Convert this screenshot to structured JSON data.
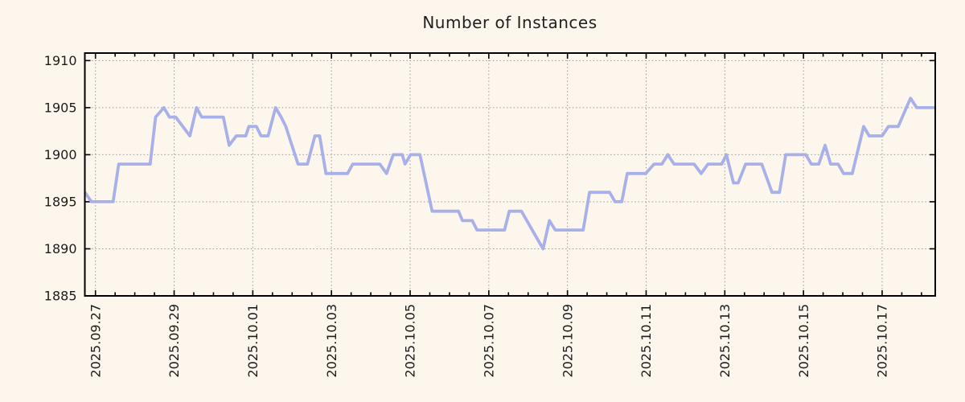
{
  "chart_data": {
    "type": "line",
    "title": "Number of Instances",
    "x_unit": "days since 2025-09-27 00:00",
    "xlim": [
      -0.27,
      21.35
    ],
    "ylim": [
      1885,
      1910.8
    ],
    "grid": "dotted",
    "legend": "none",
    "x_ticks": [
      {
        "t": 0,
        "label": "2025.09.27"
      },
      {
        "t": 2,
        "label": "2025.09.29"
      },
      {
        "t": 4,
        "label": "2025.10.01"
      },
      {
        "t": 6,
        "label": "2025.10.03"
      },
      {
        "t": 8,
        "label": "2025.10.05"
      },
      {
        "t": 10,
        "label": "2025.10.07"
      },
      {
        "t": 12,
        "label": "2025.10.09"
      },
      {
        "t": 14,
        "label": "2025.10.11"
      },
      {
        "t": 16,
        "label": "2025.10.13"
      },
      {
        "t": 18,
        "label": "2025.10.15"
      },
      {
        "t": 20,
        "label": "2025.10.17"
      }
    ],
    "x_minor_step": 0.5,
    "y_ticks": [
      1885,
      1890,
      1895,
      1900,
      1905,
      1910
    ],
    "colors": {
      "line": "#a8b0ea",
      "grid": "#999999",
      "frame": "#000000",
      "text": "#1c1c1c",
      "background": "#fdf6ec"
    },
    "series": [
      {
        "name": "instances",
        "points": [
          [
            -0.27,
            1896
          ],
          [
            -0.1,
            1895
          ],
          [
            0.45,
            1895
          ],
          [
            0.59,
            1899
          ],
          [
            1.39,
            1899
          ],
          [
            1.53,
            1904
          ],
          [
            1.74,
            1905
          ],
          [
            1.88,
            1904
          ],
          [
            2.04,
            1904
          ],
          [
            2.4,
            1902
          ],
          [
            2.57,
            1905
          ],
          [
            2.7,
            1904
          ],
          [
            3.25,
            1904
          ],
          [
            3.4,
            1901
          ],
          [
            3.58,
            1902
          ],
          [
            3.82,
            1902
          ],
          [
            3.9,
            1903
          ],
          [
            4.09,
            1903
          ],
          [
            4.21,
            1902
          ],
          [
            4.39,
            1902
          ],
          [
            4.58,
            1905
          ],
          [
            4.72,
            1904
          ],
          [
            4.84,
            1903
          ],
          [
            5.15,
            1899
          ],
          [
            5.39,
            1899
          ],
          [
            5.58,
            1902
          ],
          [
            5.7,
            1902
          ],
          [
            5.86,
            1898
          ],
          [
            6.41,
            1898
          ],
          [
            6.54,
            1899
          ],
          [
            7.23,
            1899
          ],
          [
            7.4,
            1898
          ],
          [
            7.57,
            1900
          ],
          [
            7.8,
            1900
          ],
          [
            7.87,
            1899
          ],
          [
            8.01,
            1900
          ],
          [
            8.25,
            1900
          ],
          [
            8.56,
            1894
          ],
          [
            9.23,
            1894
          ],
          [
            9.33,
            1893
          ],
          [
            9.58,
            1893
          ],
          [
            9.7,
            1892
          ],
          [
            10.4,
            1892
          ],
          [
            10.52,
            1894
          ],
          [
            10.83,
            1894
          ],
          [
            11.38,
            1890
          ],
          [
            11.54,
            1893
          ],
          [
            11.69,
            1892
          ],
          [
            12.4,
            1892
          ],
          [
            12.56,
            1896
          ],
          [
            13.07,
            1896
          ],
          [
            13.21,
            1895
          ],
          [
            13.38,
            1895
          ],
          [
            13.52,
            1898
          ],
          [
            13.99,
            1898
          ],
          [
            14.2,
            1899
          ],
          [
            14.4,
            1899
          ],
          [
            14.55,
            1900
          ],
          [
            14.71,
            1899
          ],
          [
            15.22,
            1899
          ],
          [
            15.4,
            1898
          ],
          [
            15.57,
            1899
          ],
          [
            15.92,
            1899
          ],
          [
            16.04,
            1900
          ],
          [
            16.22,
            1897
          ],
          [
            16.34,
            1897
          ],
          [
            16.53,
            1899
          ],
          [
            16.94,
            1899
          ],
          [
            17.2,
            1896
          ],
          [
            17.39,
            1896
          ],
          [
            17.55,
            1900
          ],
          [
            18.06,
            1900
          ],
          [
            18.2,
            1899
          ],
          [
            18.39,
            1899
          ],
          [
            18.55,
            1901
          ],
          [
            18.69,
            1899
          ],
          [
            18.88,
            1899
          ],
          [
            19.02,
            1898
          ],
          [
            19.24,
            1898
          ],
          [
            19.53,
            1903
          ],
          [
            19.67,
            1902
          ],
          [
            20.0,
            1902
          ],
          [
            20.16,
            1903
          ],
          [
            20.41,
            1903
          ],
          [
            20.72,
            1906
          ],
          [
            20.88,
            1905
          ],
          [
            21.35,
            1905
          ]
        ]
      }
    ]
  }
}
